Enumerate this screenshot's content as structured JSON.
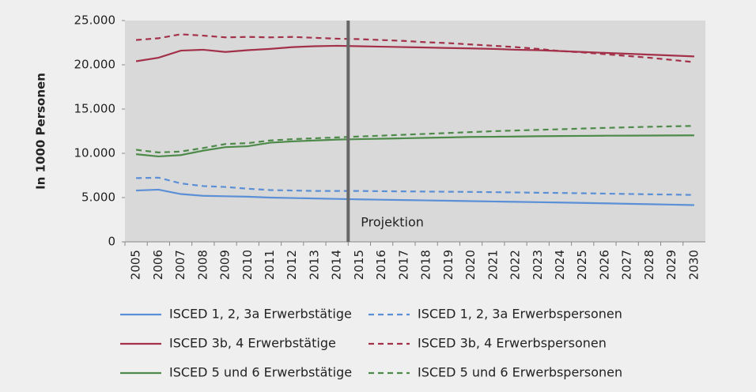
{
  "chart_data": {
    "type": "line",
    "y_label": "In 1000 Personen",
    "categories": [
      "2005",
      "2006",
      "2007",
      "2008",
      "2009",
      "2010",
      "2011",
      "2012",
      "2013",
      "2014",
      "2015",
      "2016",
      "2017",
      "2018",
      "2019",
      "2020",
      "2021",
      "2022",
      "2023",
      "2024",
      "2025",
      "2026",
      "2027",
      "2028",
      "2029",
      "2030"
    ],
    "ylim": [
      0,
      25000
    ],
    "yticks": [
      0,
      {
        "value": 5000,
        "label": "5.000"
      },
      {
        "value": 10000,
        "label": "10.000"
      },
      {
        "value": 15000,
        "label": "15.000"
      },
      {
        "value": 20000,
        "label": "20.000"
      },
      {
        "value": 25000,
        "label": "25.000"
      }
    ],
    "projection": {
      "category_index": 9.5,
      "label": "Projektion"
    },
    "series": [
      {
        "name": "ISCED 1, 2, 3a Erwerbstätige",
        "color": "#5b8fd6",
        "dashed": false,
        "values": [
          5800,
          5900,
          5400,
          5200,
          5150,
          5100,
          5000,
          4950,
          4900,
          4850,
          4800,
          4760,
          4720,
          4680,
          4640,
          4600,
          4560,
          4520,
          4480,
          4440,
          4400,
          4350,
          4300,
          4250,
          4200,
          4150
        ]
      },
      {
        "name": "ISCED 1, 2, 3a Erwerbspersonen",
        "color": "#5b8fd6",
        "dashed": true,
        "values": [
          7200,
          7250,
          6600,
          6300,
          6200,
          6000,
          5850,
          5800,
          5750,
          5750,
          5750,
          5720,
          5700,
          5680,
          5660,
          5640,
          5610,
          5580,
          5550,
          5520,
          5490,
          5450,
          5410,
          5370,
          5340,
          5300
        ]
      },
      {
        "name": "ISCED 3b, 4 Erwerbstätige",
        "color": "#a3314a",
        "dashed": false,
        "values": [
          20400,
          20800,
          21600,
          21700,
          21450,
          21650,
          21800,
          22000,
          22100,
          22150,
          22100,
          22050,
          22000,
          21950,
          21900,
          21850,
          21800,
          21700,
          21650,
          21550,
          21450,
          21350,
          21250,
          21150,
          21050,
          20950
        ]
      },
      {
        "name": "ISCED 3b, 4 Erwerbspersonen",
        "color": "#a3314a",
        "dashed": true,
        "values": [
          22800,
          23000,
          23450,
          23300,
          23100,
          23150,
          23100,
          23150,
          23050,
          22950,
          22900,
          22800,
          22700,
          22550,
          22450,
          22300,
          22150,
          22000,
          21800,
          21550,
          21400,
          21200,
          21000,
          20800,
          20550,
          20300
        ]
      },
      {
        "name": "ISCED 5 und 6 Erwerbstätige",
        "color": "#4e8a4a",
        "dashed": false,
        "values": [
          9900,
          9650,
          9800,
          10300,
          10700,
          10800,
          11200,
          11350,
          11450,
          11550,
          11600,
          11650,
          11700,
          11750,
          11800,
          11850,
          11870,
          11900,
          11930,
          11950,
          11970,
          11990,
          12000,
          12010,
          12020,
          12030
        ]
      },
      {
        "name": "ISCED 5 und 6 Erwerbspersonen",
        "color": "#4e8a4a",
        "dashed": true,
        "values": [
          10400,
          10100,
          10200,
          10600,
          11050,
          11150,
          11450,
          11600,
          11700,
          11800,
          11900,
          12000,
          12100,
          12200,
          12300,
          12400,
          12500,
          12580,
          12650,
          12720,
          12800,
          12870,
          12940,
          13000,
          13050,
          13100
        ]
      }
    ]
  }
}
